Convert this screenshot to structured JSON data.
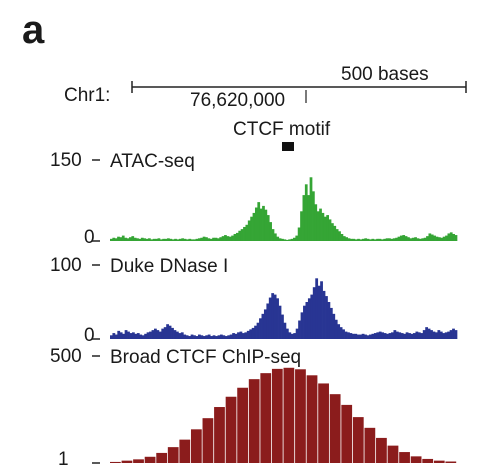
{
  "panel_label": "a",
  "scale_bar_label": "500 bases",
  "chrom_label": "Chr1:",
  "coordinate_label": "76,620,000",
  "motif_label": "CTCF motif",
  "colors": {
    "atac": "#35a535",
    "dnase": "#283593",
    "chip": "#8b1c1c",
    "motif": "#111111",
    "axis": "#222222"
  },
  "chart_data": [
    {
      "type": "area",
      "series": [
        {
          "name": "ATAC-seq"
        }
      ],
      "title": "ATAC-seq",
      "ylim": [
        0,
        150
      ],
      "ytick_labels": [
        "150",
        "0"
      ],
      "values": [
        4,
        6,
        5,
        8,
        7,
        10,
        6,
        5,
        7,
        9,
        6,
        5,
        4,
        6,
        5,
        4,
        5,
        3,
        4,
        4,
        5,
        3,
        4,
        4,
        5,
        4,
        3,
        4,
        3,
        4,
        5,
        4,
        3,
        4,
        3,
        3,
        4,
        5,
        6,
        8,
        7,
        5,
        4,
        6,
        6,
        5,
        7,
        9,
        11,
        9,
        8,
        10,
        13,
        15,
        19,
        22,
        26,
        30,
        38,
        45,
        52,
        62,
        72,
        60,
        65,
        58,
        48,
        35,
        22,
        14,
        8,
        5,
        4,
        3,
        2,
        3,
        4,
        6,
        10,
        25,
        55,
        85,
        105,
        85,
        118,
        92,
        68,
        55,
        60,
        52,
        45,
        48,
        40,
        33,
        28,
        22,
        18,
        13,
        9,
        7,
        5,
        4,
        4,
        3,
        4,
        3,
        4,
        5,
        4,
        3,
        4,
        3,
        4,
        4,
        3,
        4,
        5,
        5,
        4,
        5,
        6,
        8,
        10,
        11,
        9,
        7,
        5,
        6,
        7,
        5,
        4,
        5,
        6,
        9,
        14,
        12,
        10,
        8,
        7,
        6,
        8,
        10,
        14,
        16,
        13,
        11
      ]
    },
    {
      "type": "area",
      "series": [
        {
          "name": "Duke DNase I"
        }
      ],
      "title": "Duke DNase I",
      "ylim": [
        0,
        100
      ],
      "ytick_labels": [
        "100",
        "0"
      ],
      "values": [
        5,
        8,
        6,
        11,
        9,
        7,
        12,
        10,
        8,
        9,
        7,
        8,
        6,
        5,
        7,
        9,
        10,
        12,
        14,
        12,
        10,
        14,
        16,
        20,
        18,
        15,
        12,
        10,
        8,
        9,
        6,
        5,
        4,
        6,
        5,
        4,
        6,
        5,
        4,
        5,
        6,
        4,
        5,
        4,
        5,
        6,
        5,
        4,
        5,
        6,
        8,
        7,
        9,
        10,
        8,
        9,
        11,
        13,
        15,
        18,
        22,
        28,
        34,
        40,
        48,
        56,
        62,
        60,
        55,
        45,
        33,
        22,
        14,
        9,
        7,
        8,
        14,
        25,
        36,
        45,
        50,
        55,
        60,
        70,
        82,
        72,
        78,
        65,
        58,
        50,
        42,
        34,
        26,
        20,
        16,
        13,
        10,
        9,
        8,
        7,
        7,
        6,
        6,
        7,
        6,
        5,
        6,
        7,
        8,
        9,
        10,
        9,
        8,
        7,
        8,
        9,
        12,
        10,
        9,
        8,
        7,
        9,
        8,
        7,
        8,
        10,
        9,
        8,
        12,
        16,
        14,
        12,
        10,
        9,
        12,
        10,
        8,
        9,
        10,
        12,
        14,
        12
      ]
    },
    {
      "type": "bar",
      "series": [
        {
          "name": "Broad CTCF ChIP-seq"
        }
      ],
      "title": "Broad CTCF ChIP-seq",
      "ylim": [
        1,
        500
      ],
      "ytick_labels": [
        "500",
        "1"
      ],
      "values": [
        6,
        12,
        18,
        30,
        48,
        75,
        110,
        158,
        210,
        262,
        310,
        352,
        392,
        420,
        440,
        445,
        438,
        410,
        372,
        322,
        272,
        215,
        165,
        118,
        82,
        52,
        32,
        20,
        12,
        8
      ]
    }
  ]
}
